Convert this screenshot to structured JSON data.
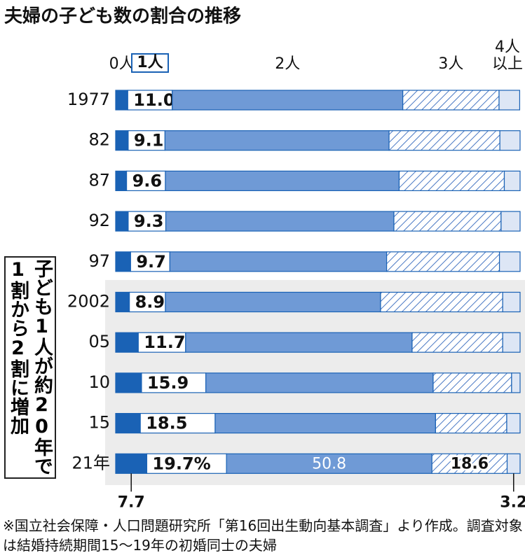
{
  "chart_data": {
    "type": "stacked-bar-horizontal",
    "title": "夫婦の子ども数の割合の推移",
    "categories": [
      "1977",
      "82",
      "87",
      "92",
      "97",
      "2002",
      "05",
      "10",
      "15",
      "21年"
    ],
    "xlim": [
      0,
      100
    ],
    "series": [
      {
        "name": "0人",
        "color": "#1a62b5",
        "values": [
          3.0,
          3.1,
          2.7,
          3.1,
          3.7,
          3.4,
          5.6,
          6.4,
          6.1,
          7.7
        ],
        "value_labels": [
          null,
          null,
          null,
          null,
          null,
          null,
          null,
          null,
          null,
          "7.7"
        ]
      },
      {
        "name": "1人",
        "color": "#ffffff",
        "values": [
          11.0,
          9.1,
          9.6,
          9.3,
          9.7,
          8.9,
          11.7,
          15.9,
          18.5,
          19.7
        ],
        "value_labels": [
          "11.0",
          "9.1",
          "9.6",
          "9.3",
          "9.7",
          "8.9",
          "11.7",
          "15.9",
          "18.5",
          "19.7%"
        ]
      },
      {
        "name": "2人",
        "color": "#6f9ad6",
        "values": [
          57.0,
          55.4,
          57.8,
          56.4,
          53.6,
          53.2,
          56.0,
          56.2,
          54.5,
          50.8
        ],
        "value_labels": [
          null,
          null,
          null,
          null,
          null,
          null,
          null,
          null,
          null,
          "50.8"
        ]
      },
      {
        "name": "3人",
        "color": "#4a79c4",
        "pattern": "hatch",
        "values": [
          23.8,
          27.4,
          26.0,
          26.5,
          27.9,
          30.2,
          22.4,
          19.4,
          17.6,
          18.6
        ],
        "value_labels": [
          null,
          null,
          null,
          null,
          null,
          null,
          null,
          null,
          null,
          "18.6"
        ]
      },
      {
        "name": "4人以上",
        "color": "#dde6f5",
        "values": [
          5.1,
          5.0,
          3.9,
          4.7,
          5.1,
          4.3,
          4.3,
          2.1,
          3.3,
          3.2
        ],
        "value_labels": [
          null,
          null,
          null,
          null,
          null,
          null,
          null,
          null,
          null,
          "3.2"
        ]
      }
    ],
    "annotation": "子ども1人が約20年で1割から2割に増加",
    "source": "※国立社会保障・人口問題研究所「第16回出生動向基本調査」より作成。調査対象は結婚持続期間15～19年の初婚同士の夫婦"
  }
}
